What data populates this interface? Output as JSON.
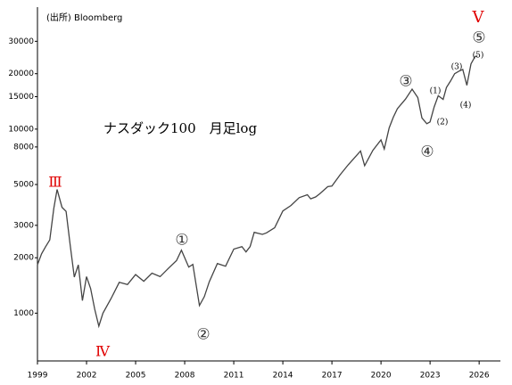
{
  "chart_data": {
    "type": "line",
    "title": "ナスダック100　月足log",
    "source": "(出所)  Bloomberg",
    "x": [
      1999.0,
      1999.25,
      1999.5,
      1999.75,
      2000.0,
      2000.2,
      2000.5,
      2000.75,
      2001.0,
      2001.25,
      2001.5,
      2001.75,
      2002.0,
      2002.25,
      2002.5,
      2002.75,
      2003.0,
      2003.5,
      2004.0,
      2004.5,
      2005.0,
      2005.5,
      2006.0,
      2006.5,
      2007.0,
      2007.5,
      2007.8,
      2008.25,
      2008.5,
      2008.9,
      2009.2,
      2009.5,
      2010.0,
      2010.5,
      2011.0,
      2011.5,
      2011.75,
      2012.0,
      2012.25,
      2012.75,
      2013.0,
      2013.5,
      2014.0,
      2014.5,
      2015.0,
      2015.5,
      2015.7,
      2016.0,
      2016.25,
      2016.75,
      2017.0,
      2017.5,
      2018.0,
      2018.75,
      2019.0,
      2019.5,
      2020.0,
      2020.2,
      2020.5,
      2020.75,
      2021.0,
      2021.5,
      2021.9,
      2022.25,
      2022.5,
      2022.8,
      2023.0,
      2023.25,
      2023.5,
      2023.8,
      2024.0,
      2024.25,
      2024.5,
      2024.75,
      2025.0,
      2025.25,
      2025.5,
      2025.75,
      2025.9
    ],
    "values": [
      1830,
      2100,
      2300,
      2500,
      3700,
      4700,
      3760,
      3570,
      2340,
      1570,
      1830,
      1170,
      1580,
      1360,
      1050,
      850,
      1000,
      1200,
      1470,
      1430,
      1620,
      1490,
      1650,
      1580,
      1750,
      1930,
      2200,
      1780,
      1840,
      1100,
      1230,
      1480,
      1860,
      1800,
      2230,
      2300,
      2150,
      2300,
      2750,
      2680,
      2730,
      2910,
      3590,
      3850,
      4240,
      4400,
      4180,
      4280,
      4450,
      4870,
      4900,
      5650,
      6400,
      7600,
      6330,
      7670,
      8730,
      7800,
      10150,
      11600,
      12900,
      14550,
      16500,
      14840,
      11500,
      10700,
      10940,
      13180,
      15180,
      14500,
      16820,
      18250,
      20000,
      20600,
      21100,
      17300,
      22600,
      24800,
      25000
    ],
    "color": "#444444",
    "log_y": true,
    "xlim": [
      1999,
      2027.3
    ],
    "xticks": [
      1999,
      2002,
      2005,
      2008,
      2011,
      2014,
      2017,
      2020,
      2023,
      2026
    ],
    "ylim": [
      550,
      46000
    ],
    "yticks": [
      1000,
      2000,
      3000,
      5000,
      8000,
      10000,
      15000,
      20000,
      30000
    ],
    "annotations": [
      {
        "text": "Ⅲ",
        "color": "#e00000"
      },
      {
        "text": "Ⅳ",
        "color": "#e00000"
      },
      {
        "text": "Ⅴ",
        "color": "#e00000"
      },
      {
        "text": "①",
        "color": "#333333"
      },
      {
        "text": "②",
        "color": "#333333"
      },
      {
        "text": "③",
        "color": "#333333"
      },
      {
        "text": "④",
        "color": "#333333"
      },
      {
        "text": "⑤",
        "color": "#333333"
      },
      {
        "text": "(1)",
        "color": "#000000"
      },
      {
        "text": "(2)",
        "color": "#000000"
      },
      {
        "text": "(3)",
        "color": "#000000"
      },
      {
        "text": "(4)",
        "color": "#000000"
      },
      {
        "text": "(5)",
        "color": "#000000"
      }
    ]
  }
}
